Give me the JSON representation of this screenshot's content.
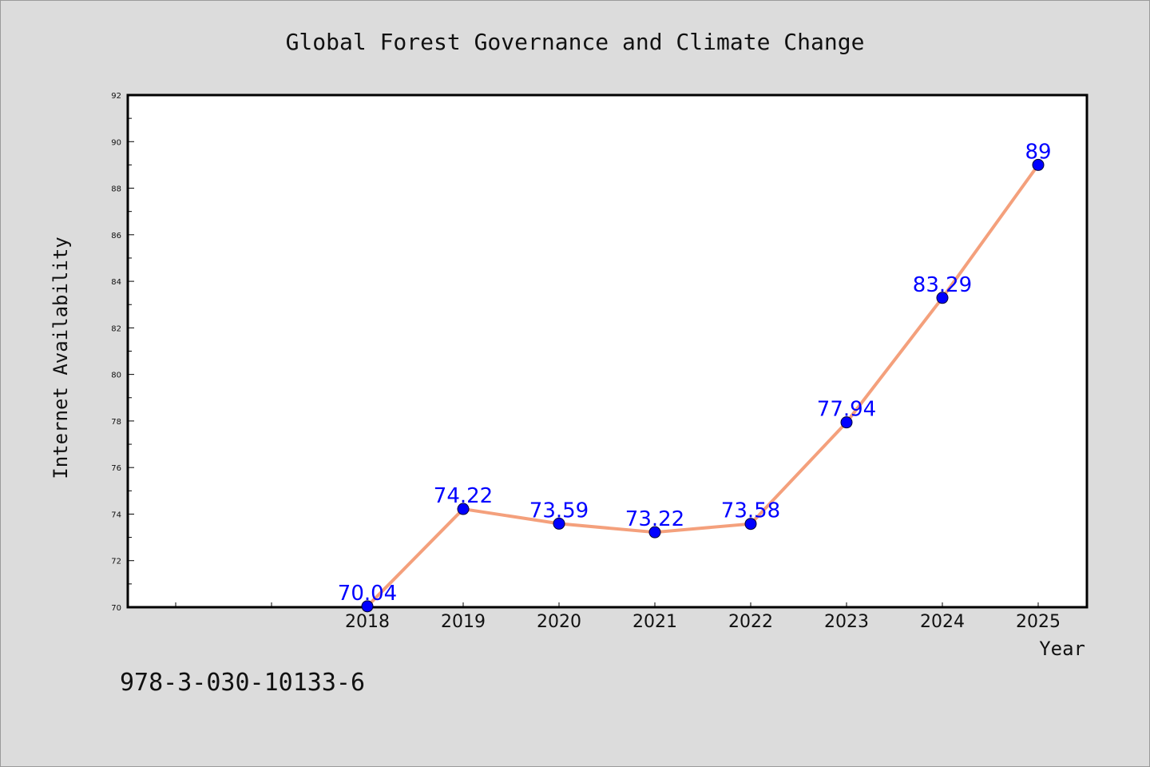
{
  "chart_data": {
    "type": "line",
    "title": "Global Forest Governance and Climate Change",
    "xlabel": "Year",
    "ylabel": "Internet Availability",
    "categories": [
      "2018",
      "2019",
      "2020",
      "2021",
      "2022",
      "2023",
      "2024",
      "2025"
    ],
    "values": [
      70.04,
      74.22,
      73.59,
      73.22,
      73.58,
      77.94,
      83.29,
      89
    ],
    "value_labels": [
      "70.04",
      "74.22",
      "73.59",
      "73.22",
      "73.58",
      "77.94",
      "83.29",
      "89"
    ],
    "ylim": [
      70,
      92
    ],
    "yticks": [
      "70",
      "72",
      "74",
      "76",
      "78",
      "80",
      "82",
      "84",
      "86",
      "88",
      "90",
      "92"
    ],
    "grid": false,
    "line_color": "#f4a07c",
    "marker_color": "#0000ff",
    "label_color": "#0000ff"
  },
  "footer": {
    "isbn": "978-3-030-10133-6"
  }
}
